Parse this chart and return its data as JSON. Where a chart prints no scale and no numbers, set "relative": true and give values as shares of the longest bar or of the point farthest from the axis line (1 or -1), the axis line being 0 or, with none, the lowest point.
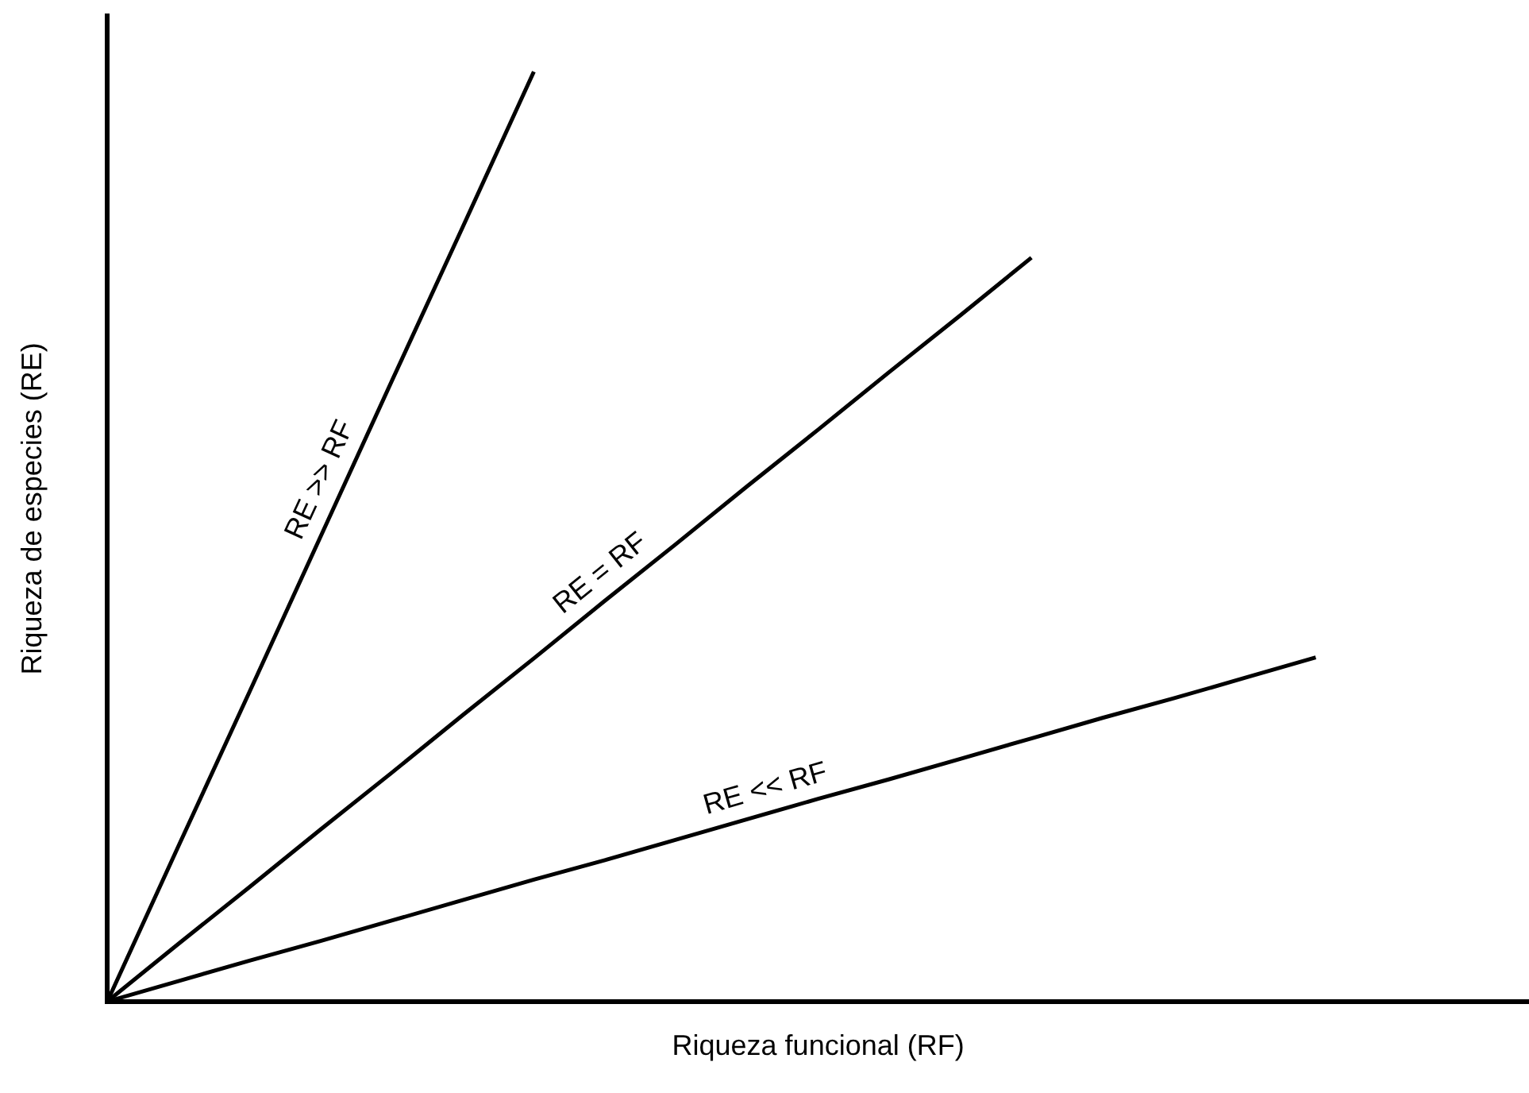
{
  "chart_data": {
    "type": "line",
    "relative": true,
    "xlabel": "Riqueza funcional (RF)",
    "ylabel": "Riqueza de especies (RE)",
    "categories": [
      null,
      null,
      null,
      null,
      null,
      null,
      null,
      null,
      null,
      null,
      null,
      null,
      null,
      null,
      null,
      null,
      null,
      null,
      null,
      null,
      null
    ],
    "series": [
      {
        "name": "RE >> RF",
        "color": "#000000",
        "values": [
          0,
          0.167,
          0.333,
          0.5,
          0.667,
          0.833,
          1,
          null,
          null,
          null,
          null,
          null,
          null,
          null,
          null,
          null,
          null,
          null,
          null,
          null,
          null
        ]
      },
      {
        "name": "RE = RF",
        "color": "#000000",
        "values": [
          0,
          0.062,
          0.123,
          0.185,
          0.246,
          0.308,
          0.369,
          0.431,
          0.492,
          0.554,
          0.615,
          0.677,
          0.738,
          0.8,
          null,
          null,
          null,
          null,
          null,
          null,
          null
        ]
      },
      {
        "name": "RE << RF",
        "color": "#000000",
        "values": [
          0,
          0.022,
          0.044,
          0.065,
          0.087,
          0.109,
          0.131,
          0.152,
          0.174,
          0.196,
          0.218,
          0.239,
          0.261,
          0.283,
          0.305,
          0.326,
          0.348,
          0.37,
          null,
          null,
          null
        ]
      }
    ]
  }
}
